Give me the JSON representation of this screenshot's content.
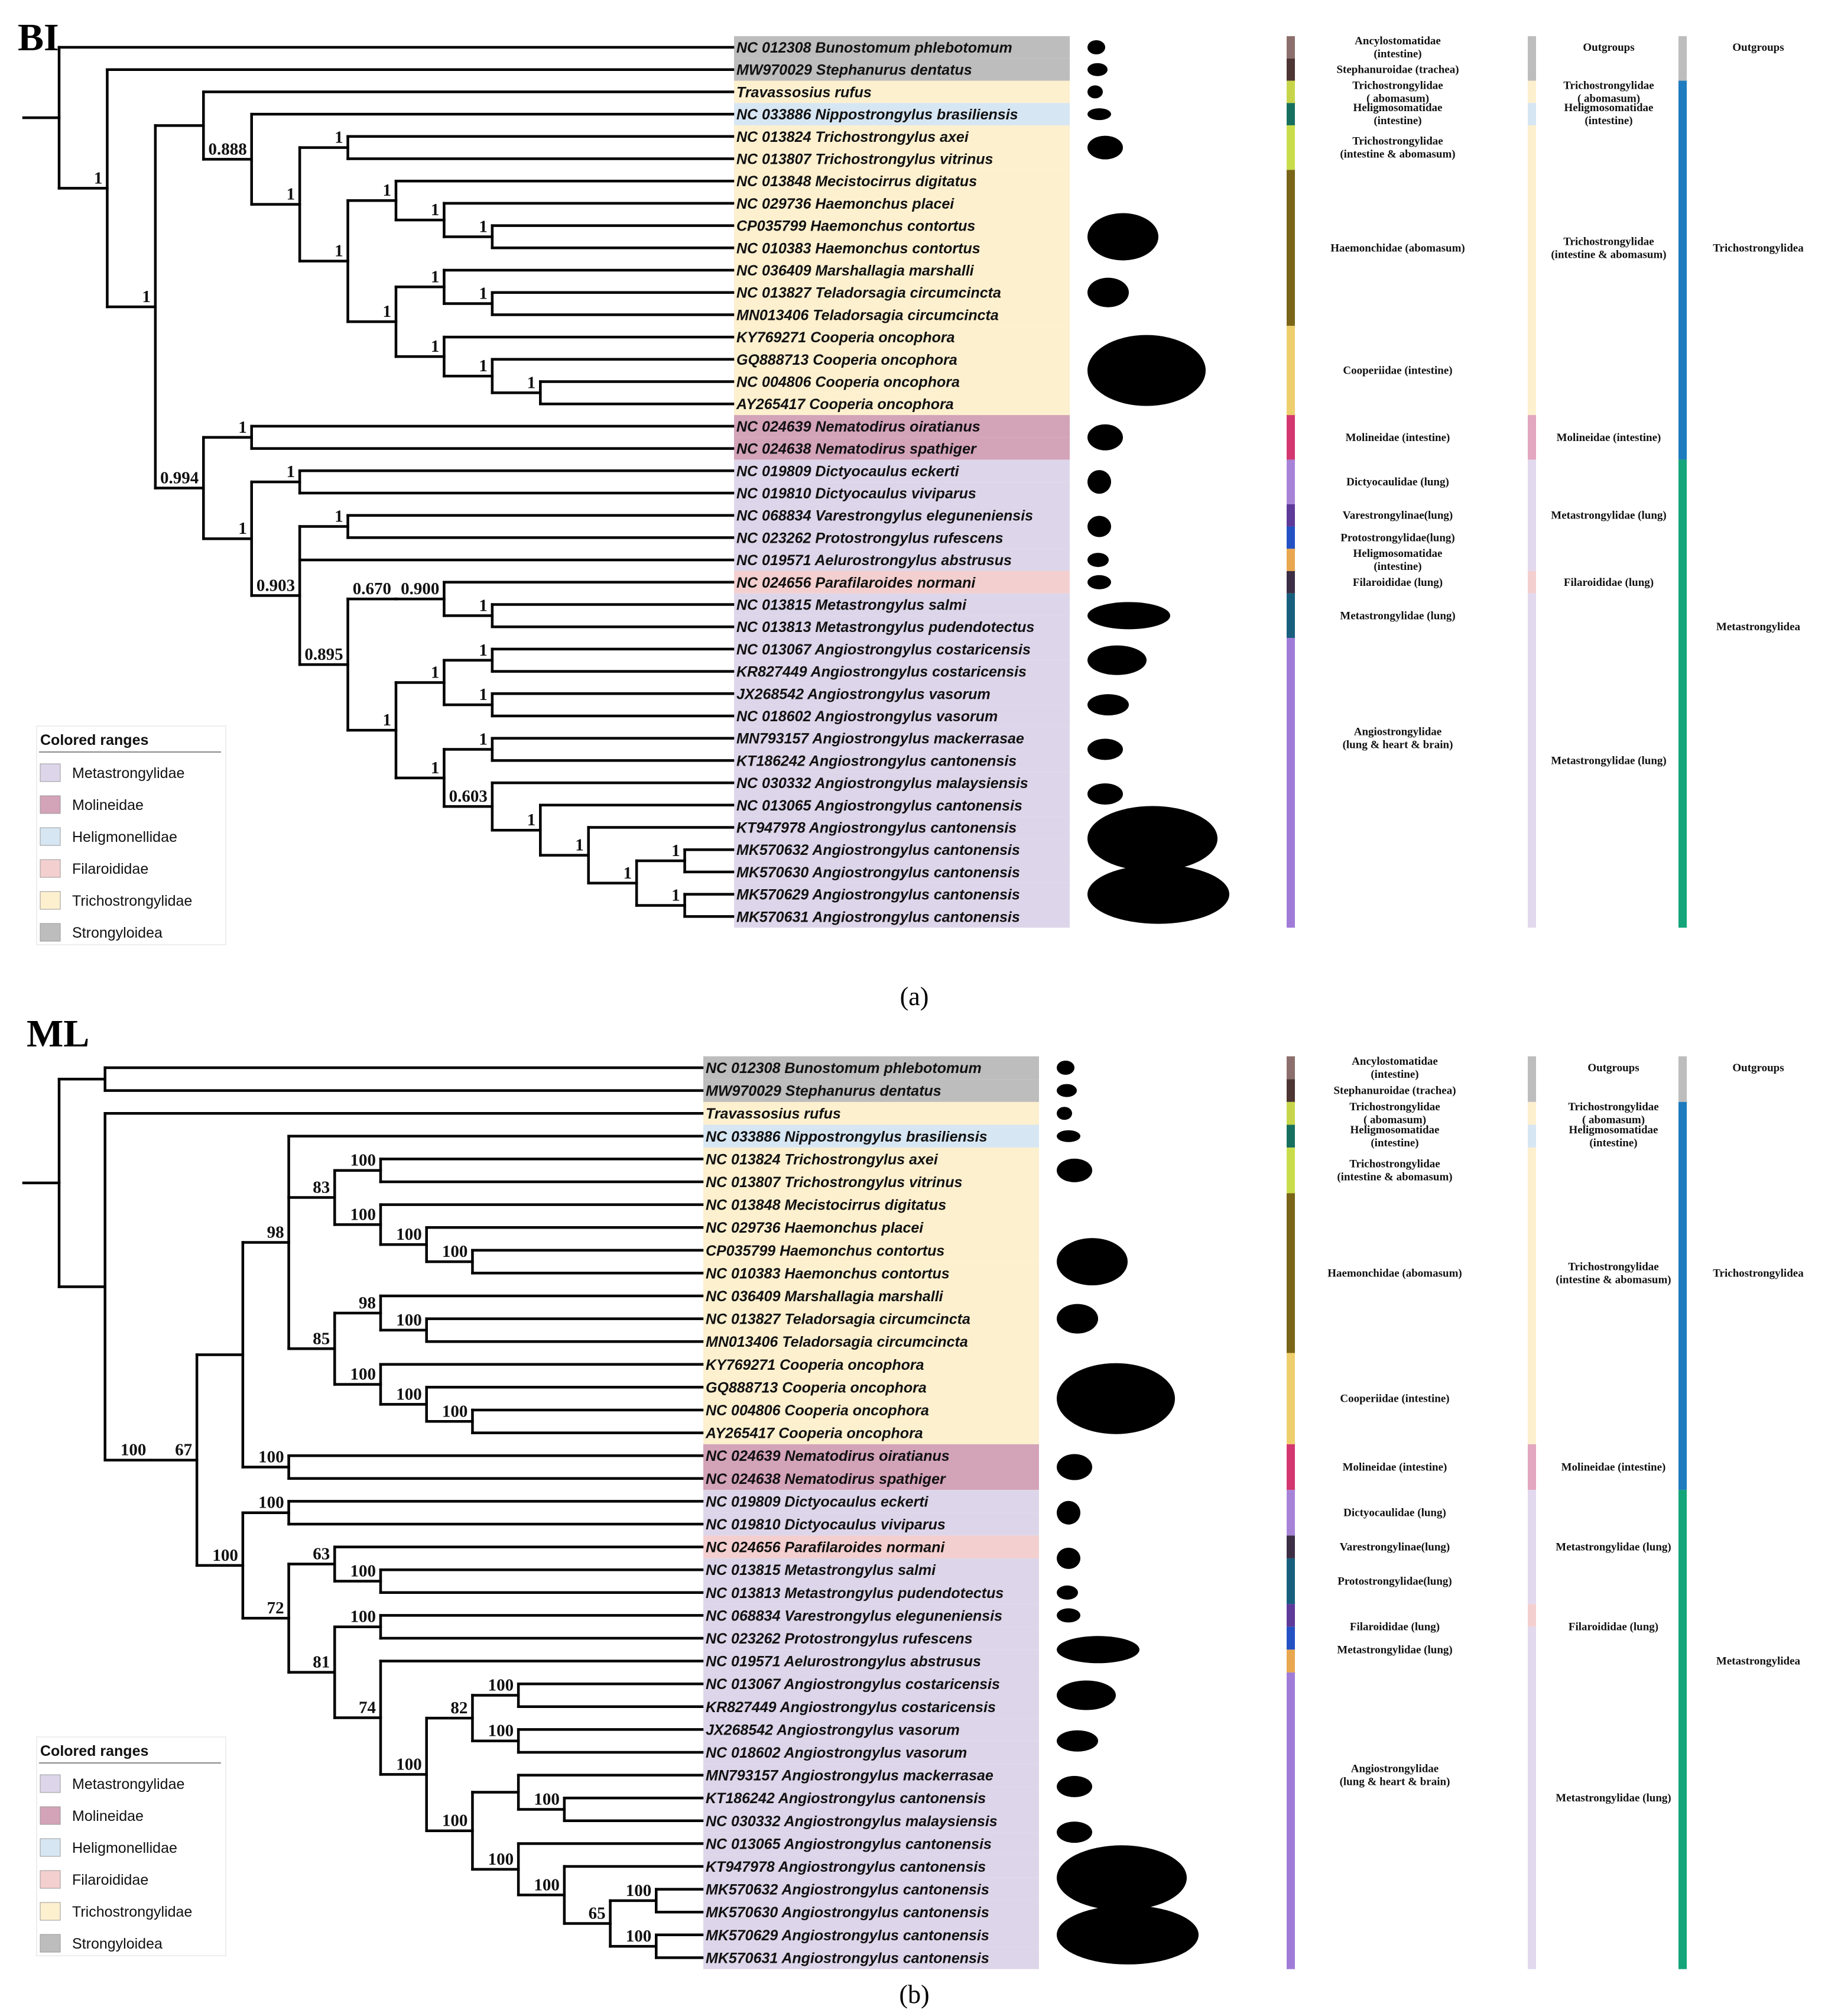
{
  "colors": {
    "Metastrongylidae": "#ddd6ea",
    "Molineidae": "#d3a3b8",
    "Heligmonellidae": "#d7e6f3",
    "Filaroididae": "#f4cfcf",
    "Trichostrongylidae": "#fdf0cf",
    "Strongyloidea": "#bdbdbd"
  },
  "legend": {
    "title": "Colored ranges",
    "items": [
      {
        "label": "Metastrongylidae",
        "color": "#ddd6ea"
      },
      {
        "label": "Molineidae",
        "color": "#d3a3b8"
      },
      {
        "label": "Heligmonellidae",
        "color": "#d7e6f3"
      },
      {
        "label": "Filaroididae",
        "color": "#f4cfcf"
      },
      {
        "label": "Trichostrongylidae",
        "color": "#fdf0cf"
      },
      {
        "label": "Strongyloidea",
        "color": "#bdbdbd"
      }
    ]
  },
  "panels": [
    {
      "title": "BI",
      "caption": "(a)",
      "taxa": [
        {
          "acc": "NC 012308",
          "sp": "Bunostomum phlebotomum",
          "range": "Strongyloidea"
        },
        {
          "acc": "MW970029",
          "sp": "Stephanurus dentatus",
          "range": "Strongyloidea"
        },
        {
          "acc": "",
          "sp": "Travassosius rufus",
          "range": "Trichostrongylidae"
        },
        {
          "acc": "NC 033886",
          "sp": "Nippostrongylus brasiliensis",
          "range": "Heligmonellidae"
        },
        {
          "acc": "NC 013824",
          "sp": "Trichostrongylus axei",
          "range": "Trichostrongylidae"
        },
        {
          "acc": "NC 013807",
          "sp": "Trichostrongylus vitrinus",
          "range": "Trichostrongylidae"
        },
        {
          "acc": "NC 013848",
          "sp": "Mecistocirrus digitatus",
          "range": "Trichostrongylidae"
        },
        {
          "acc": "NC 029736",
          "sp": "Haemonchus placei",
          "range": "Trichostrongylidae"
        },
        {
          "acc": "CP035799",
          "sp": "Haemonchus contortus",
          "range": "Trichostrongylidae"
        },
        {
          "acc": "NC 010383",
          "sp": "Haemonchus contortus",
          "range": "Trichostrongylidae"
        },
        {
          "acc": "NC 036409",
          "sp": "Marshallagia marshalli",
          "range": "Trichostrongylidae"
        },
        {
          "acc": "NC 013827",
          "sp": "Teladorsagia circumcincta",
          "range": "Trichostrongylidae"
        },
        {
          "acc": "MN013406",
          "sp": "Teladorsagia circumcincta",
          "range": "Trichostrongylidae"
        },
        {
          "acc": "KY769271",
          "sp": "Cooperia oncophora",
          "range": "Trichostrongylidae"
        },
        {
          "acc": "GQ888713",
          "sp": "Cooperia oncophora",
          "range": "Trichostrongylidae"
        },
        {
          "acc": "NC 004806",
          "sp": "Cooperia oncophora",
          "range": "Trichostrongylidae"
        },
        {
          "acc": "AY265417",
          "sp": "Cooperia oncophora",
          "range": "Trichostrongylidae"
        },
        {
          "acc": "NC 024639",
          "sp": "Nematodirus oiratianus",
          "range": "Molineidae"
        },
        {
          "acc": "NC 024638",
          "sp": "Nematodirus spathiger",
          "range": "Molineidae"
        },
        {
          "acc": "NC 019809",
          "sp": "Dictyocaulus eckerti",
          "range": "Metastrongylidae"
        },
        {
          "acc": "NC 019810",
          "sp": "Dictyocaulus viviparus",
          "range": "Metastrongylidae"
        },
        {
          "acc": "NC 068834",
          "sp": "Varestrongylus eleguneniensis",
          "range": "Metastrongylidae"
        },
        {
          "acc": "NC 023262",
          "sp": "Protostrongylus rufescens",
          "range": "Metastrongylidae"
        },
        {
          "acc": "NC 019571",
          "sp": "Aelurostrongylus abstrusus",
          "range": "Metastrongylidae"
        },
        {
          "acc": "NC 024656",
          "sp": "Parafilaroides normani",
          "range": "Filaroididae"
        },
        {
          "acc": "NC 013815",
          "sp": "Metastrongylus salmi",
          "range": "Metastrongylidae"
        },
        {
          "acc": "NC 013813",
          "sp": "Metastrongylus pudendotectus",
          "range": "Metastrongylidae"
        },
        {
          "acc": "NC 013067",
          "sp": "Angiostrongylus costaricensis",
          "range": "Metastrongylidae"
        },
        {
          "acc": "KR827449",
          "sp": "Angiostrongylus costaricensis",
          "range": "Metastrongylidae"
        },
        {
          "acc": "JX268542",
          "sp": "Angiostrongylus vasorum",
          "range": "Metastrongylidae"
        },
        {
          "acc": "NC 018602",
          "sp": "Angiostrongylus vasorum",
          "range": "Metastrongylidae"
        },
        {
          "acc": "MN793157",
          "sp": "Angiostrongylus mackerrasae",
          "range": "Metastrongylidae"
        },
        {
          "acc": "KT186242",
          "sp": "Angiostrongylus cantonensis",
          "range": "Metastrongylidae"
        },
        {
          "acc": "NC 030332",
          "sp": "Angiostrongylus malaysiensis",
          "range": "Metastrongylidae"
        },
        {
          "acc": "NC 013065",
          "sp": "Angiostrongylus cantonensis",
          "range": "Metastrongylidae"
        },
        {
          "acc": "KT947978",
          "sp": "Angiostrongylus cantonensis",
          "range": "Metastrongylidae"
        },
        {
          "acc": "MK570632",
          "sp": "Angiostrongylus cantonensis",
          "range": "Metastrongylidae"
        },
        {
          "acc": "MK570630",
          "sp": "Angiostrongylus cantonensis",
          "range": "Metastrongylidae"
        },
        {
          "acc": "MK570629",
          "sp": "Angiostrongylus cantonensis",
          "range": "Metastrongylidae"
        },
        {
          "acc": "MK570631",
          "sp": "Angiostrongylus cantonensis",
          "range": "Metastrongylidae"
        }
      ],
      "tree": "(((((((((t24:1,(t25:1,t26:1)1:1)0.900:1)0.670:1,(((t27:1,t28:1)1:1,(t29:1,t30:1)1:1)1:1,((t31:1,t32:1)1:1,(t33:1,(t34:1,(t35:1,((t36:1,t37:1)1:1,(t38:1,t39:1)1:1)1:1)1:1)1:1)0.603:1)1:1)1:1)0.895:1,t23:1,(t21:1,t22:1)1:1)0.903:1,(t19:1,t20:1)1:1)1:1,(t17:1,t18:1)1:1)0.994:1,((t3:1,((t4:1,t5:1)1:1,((t6:1,(t7:1,(t8:1,t9:1)1:1)1:1)1:1,((t10:1,(t11:1,t12:1)1:1)1:1,(t13:1,(t14:1,(t15:1,t16:1)1:1)1:1)1:1)1:1)1:1)1:1)0.888:1,t2:1):1)1:1,t1:1)1:1,t0:1);",
      "hosts": [
        {
          "label": "Ancylostomatidae (intestine)",
          "color": "#8c6f6c"
        },
        {
          "label": "Stephanuroidae (trachea)",
          "color": "#4d3533"
        },
        {
          "label": "Trichostrongylidae ( abomasum)",
          "color": "#c7d54b"
        },
        {
          "label": "Heligmosomatidae(intestine)",
          "color": "#17705f"
        },
        {
          "label": "Trichostrongylidae (intestine & abomasum)",
          "color": "#c9dd4c"
        },
        {
          "label": "Haemonchidae (abomasum)",
          "color": "#7a6518"
        },
        {
          "label": "Cooperiidae (intestine)",
          "color": "#edcf6e"
        },
        {
          "label": "Molineidae (intestine)",
          "color": "#d43770"
        },
        {
          "label": "Dictyocaulidae (lung)",
          "color": "#a783d8"
        },
        {
          "label": "Varestrongylinae(lung)",
          "color": "#5e3a9a"
        },
        {
          "label": "Protostrongylidae(lung)",
          "color": "#2452c4"
        },
        {
          "label": "Heligmosomatidae(intestine)",
          "color": "#e9a750"
        },
        {
          "label": "Filaroididae (lung)",
          "color": "#3c2e45"
        },
        {
          "label": "Metastrongylidae (lung)",
          "color": "#185f7d"
        },
        {
          "label": "Angiostrongylidae (lung & heart & brain)",
          "color": "#a07cd8"
        }
      ],
      "families": [
        {
          "label": "Outgroups",
          "color": "#bdbdbd"
        },
        {
          "label": "Trichostrongylidae ( abomasum)",
          "color": "#fdf0cf"
        },
        {
          "label": "Heligmosomatidae (intestine)",
          "color": "#d7e6f3"
        },
        {
          "label": "Trichostrongylidae (intestine & abomasum)",
          "color": "#fdf0cf"
        },
        {
          "label": "Molineidae (intestine)",
          "color": "#e3a7bf"
        },
        {
          "label": "Metastrongylidae (lung)",
          "color": "#e2d9ee"
        },
        {
          "label": "Filaroididae (lung)",
          "color": "#f4cfcf"
        },
        {
          "label": "Metastrongylidae (lung)",
          "color": "#e2d9ee"
        }
      ],
      "superfamilies": [
        {
          "label": "Outgroups",
          "color": "#bdbdbd"
        },
        {
          "label": "Trichostrongylidea",
          "color": "#1e7bbf"
        },
        {
          "label": "Metastrongylidea",
          "color": "#14a57a"
        }
      ]
    },
    {
      "title": "ML",
      "caption": "(b)",
      "taxa": [
        {
          "acc": "NC 012308",
          "sp": "Bunostomum phlebotomum",
          "range": "Strongyloidea"
        },
        {
          "acc": "MW970029",
          "sp": "Stephanurus dentatus",
          "range": "Strongyloidea"
        },
        {
          "acc": "",
          "sp": "Travassosius rufus",
          "range": "Trichostrongylidae"
        },
        {
          "acc": "NC 033886",
          "sp": "Nippostrongylus brasiliensis",
          "range": "Heligmonellidae"
        },
        {
          "acc": "NC 013824",
          "sp": "Trichostrongylus axei",
          "range": "Trichostrongylidae"
        },
        {
          "acc": "NC 013807",
          "sp": "Trichostrongylus vitrinus",
          "range": "Trichostrongylidae"
        },
        {
          "acc": "NC 013848",
          "sp": "Mecistocirrus digitatus",
          "range": "Trichostrongylidae"
        },
        {
          "acc": "NC 029736",
          "sp": "Haemonchus placei",
          "range": "Trichostrongylidae"
        },
        {
          "acc": "CP035799",
          "sp": "Haemonchus contortus",
          "range": "Trichostrongylidae"
        },
        {
          "acc": "NC 010383",
          "sp": "Haemonchus contortus",
          "range": "Trichostrongylidae"
        },
        {
          "acc": "NC 036409",
          "sp": "Marshallagia marshalli",
          "range": "Trichostrongylidae"
        },
        {
          "acc": "NC 013827",
          "sp": "Teladorsagia circumcincta",
          "range": "Trichostrongylidae"
        },
        {
          "acc": "MN013406",
          "sp": "Teladorsagia circumcincta",
          "range": "Trichostrongylidae"
        },
        {
          "acc": "KY769271",
          "sp": "Cooperia oncophora",
          "range": "Trichostrongylidae"
        },
        {
          "acc": "GQ888713",
          "sp": "Cooperia oncophora",
          "range": "Trichostrongylidae"
        },
        {
          "acc": "NC 004806",
          "sp": "Cooperia oncophora",
          "range": "Trichostrongylidae"
        },
        {
          "acc": "AY265417",
          "sp": "Cooperia oncophora",
          "range": "Trichostrongylidae"
        },
        {
          "acc": "NC 024639",
          "sp": "Nematodirus oiratianus",
          "range": "Molineidae"
        },
        {
          "acc": "NC 024638",
          "sp": "Nematodirus spathiger",
          "range": "Molineidae"
        },
        {
          "acc": "NC 019809",
          "sp": "Dictyocaulus eckerti",
          "range": "Metastrongylidae"
        },
        {
          "acc": "NC 019810",
          "sp": "Dictyocaulus viviparus",
          "range": "Metastrongylidae"
        },
        {
          "acc": "NC 024656",
          "sp": "Parafilaroides normani",
          "range": "Filaroididae"
        },
        {
          "acc": "NC 013815",
          "sp": "Metastrongylus salmi",
          "range": "Metastrongylidae"
        },
        {
          "acc": "NC 013813",
          "sp": "Metastrongylus pudendotectus",
          "range": "Metastrongylidae"
        },
        {
          "acc": "NC 068834",
          "sp": "Varestrongylus eleguneniensis",
          "range": "Metastrongylidae"
        },
        {
          "acc": "NC 023262",
          "sp": "Protostrongylus rufescens",
          "range": "Metastrongylidae"
        },
        {
          "acc": "NC 019571",
          "sp": "Aelurostrongylus abstrusus",
          "range": "Metastrongylidae"
        },
        {
          "acc": "NC 013067",
          "sp": "Angiostrongylus costaricensis",
          "range": "Metastrongylidae"
        },
        {
          "acc": "KR827449",
          "sp": "Angiostrongylus costaricensis",
          "range": "Metastrongylidae"
        },
        {
          "acc": "JX268542",
          "sp": "Angiostrongylus vasorum",
          "range": "Metastrongylidae"
        },
        {
          "acc": "NC 018602",
          "sp": "Angiostrongylus vasorum",
          "range": "Metastrongylidae"
        },
        {
          "acc": "MN793157",
          "sp": "Angiostrongylus mackerrasae",
          "range": "Metastrongylidae"
        },
        {
          "acc": "KT186242",
          "sp": "Angiostrongylus cantonensis",
          "range": "Metastrongylidae"
        },
        {
          "acc": "NC 030332",
          "sp": "Angiostrongylus malaysiensis",
          "range": "Metastrongylidae"
        },
        {
          "acc": "NC 013065",
          "sp": "Angiostrongylus cantonensis",
          "range": "Metastrongylidae"
        },
        {
          "acc": "KT947978",
          "sp": "Angiostrongylus cantonensis",
          "range": "Metastrongylidae"
        },
        {
          "acc": "MK570632",
          "sp": "Angiostrongylus cantonensis",
          "range": "Metastrongylidae"
        },
        {
          "acc": "MK570630",
          "sp": "Angiostrongylus cantonensis",
          "range": "Metastrongylidae"
        },
        {
          "acc": "MK570629",
          "sp": "Angiostrongylus cantonensis",
          "range": "Metastrongylidae"
        },
        {
          "acc": "MK570631",
          "sp": "Angiostrongylus cantonensis",
          "range": "Metastrongylidae"
        }
      ],
      "tree": "((t0:1,t1:1):1,(t2:1,((((t3:1,((t4:1,t5:1)100:1,(t6:1,(t7:1,(t8:1,t9:1)100:1)100:1)100:1)83:1,((t10:1,(t11:1,t12:1)100:1)98:1,(t13:1,(t14:1,(t15:1,t16:1)100:1)100:1)100:1)85:1)98:1,(t17:1,t18:1)100:1):1,((t19:1,t20:1)100:1,((t21:1,(t22:1,t23:1)100:1)63:1,((t24:1,t25:1)100:1,(t26:1,(((t27:1,t28:1)100:1,(t29:1,t30:1)100:1)82:1,((t31:1,(t32:1,t33:1)100:1):1,(t34:1,(t35:1,((t36:1,t37:1)100:1,(t38:1,t39:1)100:1)65:1)100:1)100:1)100:1)100:1)74:1)81:1)72:1)100:1)67:1)100:1):1);",
      "hosts": [
        {
          "label": "Ancylostomatidae (intestine)",
          "color": "#8c6f6c"
        },
        {
          "label": "Stephanuroidae (trachea)",
          "color": "#4d3533"
        },
        {
          "label": "Trichostrongylidae ( abomasum)",
          "color": "#c7d54b"
        },
        {
          "label": "Heligmosomatidae(intestine)",
          "color": "#17705f"
        },
        {
          "label": "Trichostrongylidae (intestine & abomasum)",
          "color": "#c9dd4c"
        },
        {
          "label": "Haemonchidae (abomasum)",
          "color": "#7a6518"
        },
        {
          "label": "Cooperiidae (intestine)",
          "color": "#edcf6e"
        },
        {
          "label": "Molineidae (intestine)",
          "color": "#d43770"
        },
        {
          "label": "Dictyocaulidae (lung)",
          "color": "#a783d8"
        },
        {
          "label": "Varestrongylinae(lung)",
          "color": "#3c2e45"
        },
        {
          "label": "Protostrongylidae(lung)",
          "color": "#185f7d"
        },
        {
          "label": "Filaroididae (lung)",
          "color": "#5e3a9a"
        },
        {
          "label": "Metastrongylidae (lung)",
          "color": "#2452c4"
        },
        {
          "label": "",
          "color": "#e9a750"
        },
        {
          "label": "Angiostrongylidae (lung & heart & brain)",
          "color": "#a07cd8"
        }
      ],
      "families": [
        {
          "label": "Outgroups",
          "color": "#bdbdbd"
        },
        {
          "label": "Trichostrongylidae ( abomasum)",
          "color": "#fdf0cf"
        },
        {
          "label": "Heligmosomatidae (intestine)",
          "color": "#d7e6f3"
        },
        {
          "label": "Trichostrongylidae (intestine & abomasum)",
          "color": "#fdf0cf"
        },
        {
          "label": "Molineidae (intestine)",
          "color": "#e3a7bf"
        },
        {
          "label": "Metastrongylidae (lung)",
          "color": "#e2d9ee"
        },
        {
          "label": "Filaroididae (lung)",
          "color": "#f4cfcf"
        },
        {
          "label": "Metastrongylidae (lung)",
          "color": "#e2d9ee"
        }
      ],
      "superfamilies": [
        {
          "label": "Outgroups",
          "color": "#bdbdbd"
        },
        {
          "label": "Trichostrongylidea",
          "color": "#1e7bbf"
        },
        {
          "label": "Metastrongylidea",
          "color": "#14a57a"
        }
      ]
    }
  ]
}
